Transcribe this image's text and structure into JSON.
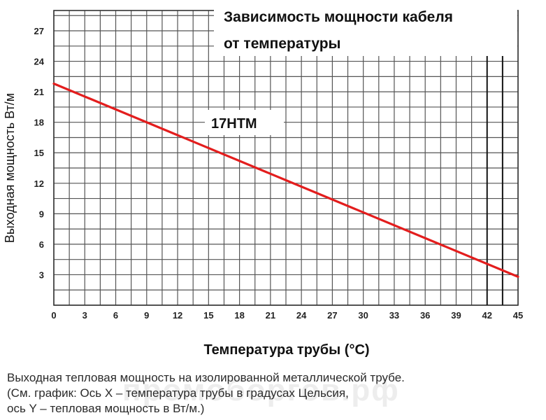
{
  "chart_data": {
    "type": "line",
    "title": [
      "Зависимость мощности кабеля",
      "от температуры"
    ],
    "xlabel": "Температура трубы (°C)",
    "ylabel": "Выходная мощность Вт/м",
    "xlim": [
      0,
      45
    ],
    "ylim": [
      0,
      29
    ],
    "x_ticks": [
      0,
      3,
      6,
      9,
      12,
      15,
      18,
      21,
      24,
      27,
      30,
      33,
      36,
      39,
      42,
      45
    ],
    "y_ticks": [
      3,
      6,
      9,
      12,
      15,
      18,
      21,
      24,
      27
    ],
    "grid": true,
    "grid_minor_step_x": 1.5,
    "grid_minor_step_y": 1.5,
    "vertical_markers": [
      42,
      43.5
    ],
    "series": [
      {
        "name": "17HTM",
        "x": [
          0,
          45
        ],
        "y": [
          21.8,
          2.8
        ],
        "color": "#e31d1d"
      }
    ]
  },
  "caption": {
    "lines": [
      "Выходная тепловая мощность на изолированной металлической трубе.",
      "(См. график: Ось X – температура трубы в градусах Цельсия,",
      "ось Y –  тепловая мощность в Вт/м.)"
    ]
  },
  "watermark": "промоборгов.рф",
  "colors": {
    "grid": "#555555",
    "line": "#e31d1d",
    "text": "#222222"
  }
}
